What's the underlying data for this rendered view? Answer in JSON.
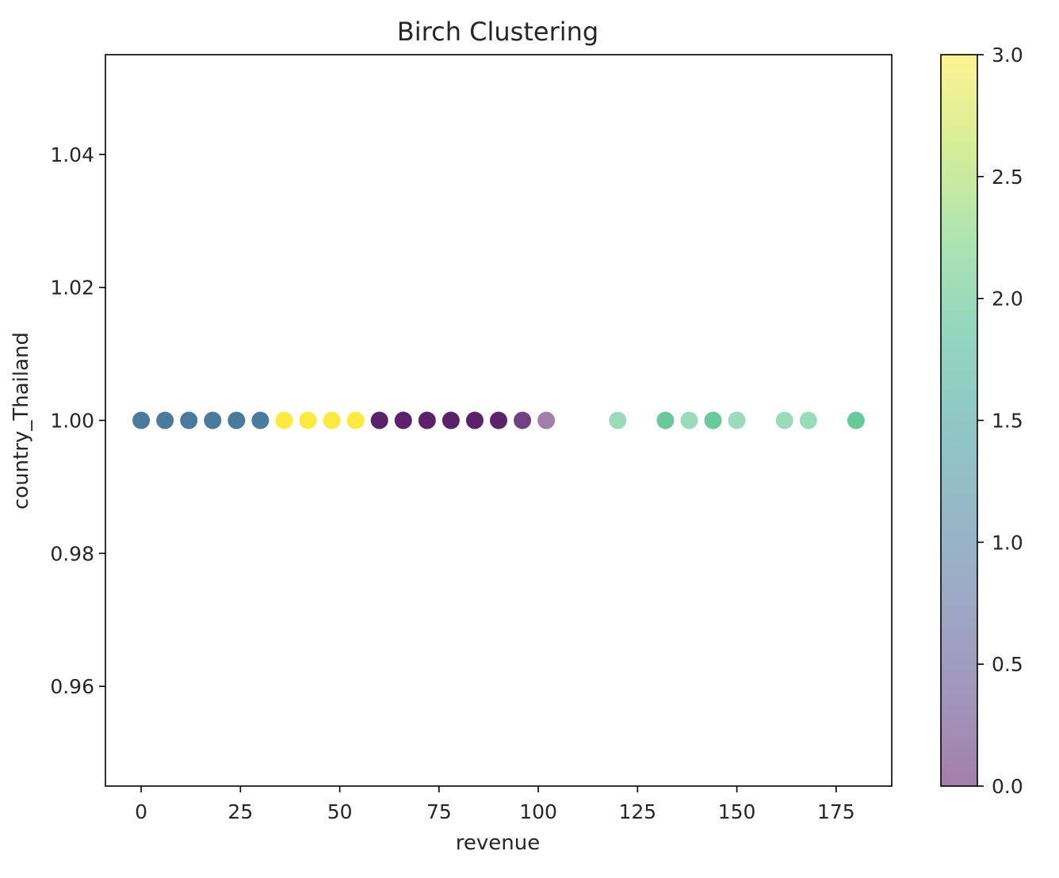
{
  "chart_data": {
    "type": "scatter",
    "title": "Birch Clustering",
    "xlabel": "revenue",
    "ylabel": "country_Thailand",
    "xlim": [
      -9,
      189
    ],
    "ylim": [
      0.945,
      1.055
    ],
    "xticks": [
      0,
      25,
      50,
      75,
      100,
      125,
      150,
      175
    ],
    "yticks": [
      0.96,
      0.98,
      1.0,
      1.02,
      1.04
    ],
    "ytick_labels": [
      "0.96",
      "0.98",
      "1.00",
      "1.02",
      "1.04"
    ],
    "grid": false,
    "colorbar": {
      "colormap": "viridis",
      "range": [
        0.0,
        3.0
      ],
      "ticks": [
        0.0,
        0.5,
        1.0,
        1.5,
        2.0,
        2.5,
        3.0
      ],
      "tick_labels": [
        "0.0",
        "0.5",
        "1.0",
        "1.5",
        "2.0",
        "2.5",
        "3.0"
      ],
      "alpha": 0.5
    },
    "points": [
      {
        "x": 0,
        "y": 1.0,
        "cluster": 1,
        "overlap": 3
      },
      {
        "x": 6,
        "y": 1.0,
        "cluster": 1,
        "overlap": 3
      },
      {
        "x": 12,
        "y": 1.0,
        "cluster": 1,
        "overlap": 3
      },
      {
        "x": 18,
        "y": 1.0,
        "cluster": 1,
        "overlap": 3
      },
      {
        "x": 24,
        "y": 1.0,
        "cluster": 1,
        "overlap": 3
      },
      {
        "x": 30,
        "y": 1.0,
        "cluster": 1,
        "overlap": 3
      },
      {
        "x": 36,
        "y": 1.0,
        "cluster": 3,
        "overlap": 3
      },
      {
        "x": 42,
        "y": 1.0,
        "cluster": 3,
        "overlap": 3
      },
      {
        "x": 48,
        "y": 1.0,
        "cluster": 3,
        "overlap": 3
      },
      {
        "x": 54,
        "y": 1.0,
        "cluster": 3,
        "overlap": 3
      },
      {
        "x": 60,
        "y": 1.0,
        "cluster": 0,
        "overlap": 3
      },
      {
        "x": 66,
        "y": 1.0,
        "cluster": 0,
        "overlap": 3
      },
      {
        "x": 72,
        "y": 1.0,
        "cluster": 0,
        "overlap": 3
      },
      {
        "x": 78,
        "y": 1.0,
        "cluster": 0,
        "overlap": 3
      },
      {
        "x": 84,
        "y": 1.0,
        "cluster": 0,
        "overlap": 3
      },
      {
        "x": 90,
        "y": 1.0,
        "cluster": 0,
        "overlap": 3
      },
      {
        "x": 96,
        "y": 1.0,
        "cluster": 0,
        "overlap": 2
      },
      {
        "x": 102,
        "y": 1.0,
        "cluster": 0,
        "overlap": 1
      },
      {
        "x": 120,
        "y": 1.0,
        "cluster": 2,
        "overlap": 1
      },
      {
        "x": 132,
        "y": 1.0,
        "cluster": 2,
        "overlap": 2
      },
      {
        "x": 138,
        "y": 1.0,
        "cluster": 2,
        "overlap": 1
      },
      {
        "x": 144,
        "y": 1.0,
        "cluster": 2,
        "overlap": 2
      },
      {
        "x": 150,
        "y": 1.0,
        "cluster": 2,
        "overlap": 1
      },
      {
        "x": 162,
        "y": 1.0,
        "cluster": 2,
        "overlap": 1
      },
      {
        "x": 168,
        "y": 1.0,
        "cluster": 2,
        "overlap": 1
      },
      {
        "x": 180,
        "y": 1.0,
        "cluster": 2,
        "overlap": 2
      }
    ]
  }
}
